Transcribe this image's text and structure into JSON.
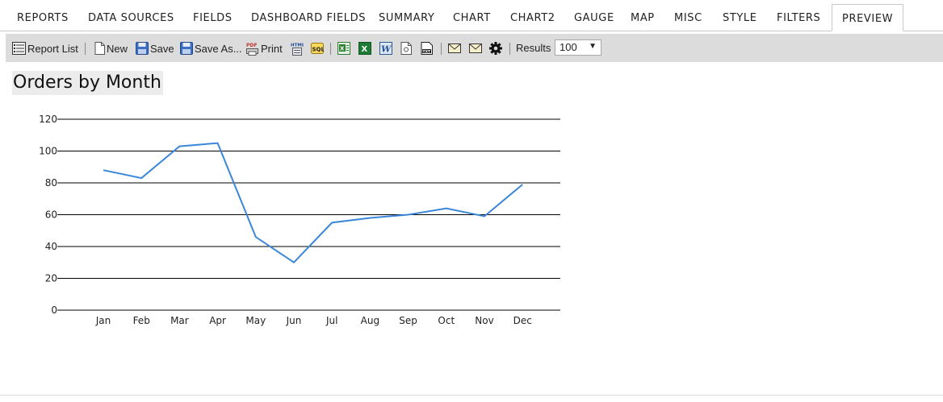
{
  "tabs": [
    {
      "label": "REPORTS",
      "active": false
    },
    {
      "label": "DATA SOURCES",
      "active": false
    },
    {
      "label": "FIELDS",
      "active": false
    },
    {
      "label": "DASHBOARD FIELDS",
      "active": false
    },
    {
      "label": "SUMMARY",
      "active": false
    },
    {
      "label": "CHART",
      "active": false
    },
    {
      "label": "CHART2",
      "active": false
    },
    {
      "label": "GAUGE",
      "active": false
    },
    {
      "label": "MAP",
      "active": false
    },
    {
      "label": "MISC",
      "active": false
    },
    {
      "label": "STYLE",
      "active": false
    },
    {
      "label": "FILTERS",
      "active": false
    },
    {
      "label": "PREVIEW",
      "active": true
    }
  ],
  "toolbar": {
    "report_list_label": "Report List",
    "new_label": "New",
    "save_label": "Save",
    "save_as_label": "Save As...",
    "print_label": "Print",
    "results_label": "Results",
    "results_value": "100",
    "icons": [
      "report-list-icon",
      "new-document-icon",
      "save-icon",
      "save-as-icon",
      "print-pdf-icon",
      "html-export-icon",
      "sql-icon",
      "excel-export-icon",
      "excel-icon",
      "word-icon",
      "xml-icon",
      "txt-icon",
      "email-icon",
      "email-attachment-icon",
      "settings-gear-icon"
    ]
  },
  "report": {
    "title": "Orders by Month"
  },
  "colors": {
    "line": "#3a86d8",
    "toolbar_bg": "#dcdcdc",
    "title_bg": "#ececec"
  },
  "chart_data": {
    "type": "line",
    "categories": [
      "Jan",
      "Feb",
      "Mar",
      "Apr",
      "May",
      "Jun",
      "Jul",
      "Aug",
      "Sep",
      "Oct",
      "Nov",
      "Dec"
    ],
    "values": [
      88,
      83,
      103,
      105,
      46,
      30,
      55,
      58,
      60,
      64,
      59,
      79
    ],
    "yticks": [
      0,
      20,
      40,
      60,
      80,
      100,
      120
    ],
    "ylim": [
      0,
      120
    ],
    "grid": true,
    "legend": "none"
  }
}
